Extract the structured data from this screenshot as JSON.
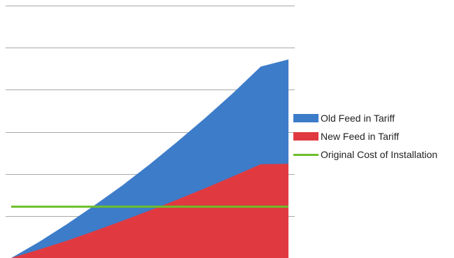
{
  "chart_data": {
    "type": "area",
    "title": "",
    "xlabel": "",
    "ylabel": "",
    "x": [
      0,
      1,
      2,
      3,
      4,
      5,
      6,
      7,
      8,
      9,
      10
    ],
    "ylim": [
      0,
      6
    ],
    "gridlines": [
      0,
      1,
      2,
      3,
      4,
      5,
      6
    ],
    "grid": true,
    "legend_position": "right",
    "series": [
      {
        "name": "Old Feed in Tariff",
        "kind": "area",
        "color": "#3d7cc9",
        "values": [
          0,
          0.38,
          0.8,
          1.25,
          1.72,
          2.23,
          2.77,
          3.33,
          3.92,
          4.55,
          4.72
        ]
      },
      {
        "name": "New Feed in Tariff",
        "kind": "area",
        "color": "#e03a40",
        "values": [
          0,
          0.2,
          0.41,
          0.64,
          0.88,
          1.13,
          1.39,
          1.66,
          1.94,
          2.23,
          2.24
        ]
      },
      {
        "name": "Original Cost of Installation",
        "kind": "line",
        "color": "#6cbf2a",
        "values": [
          1.22,
          1.22,
          1.22,
          1.22,
          1.22,
          1.22,
          1.22,
          1.22,
          1.22,
          1.22,
          1.22
        ]
      }
    ]
  }
}
